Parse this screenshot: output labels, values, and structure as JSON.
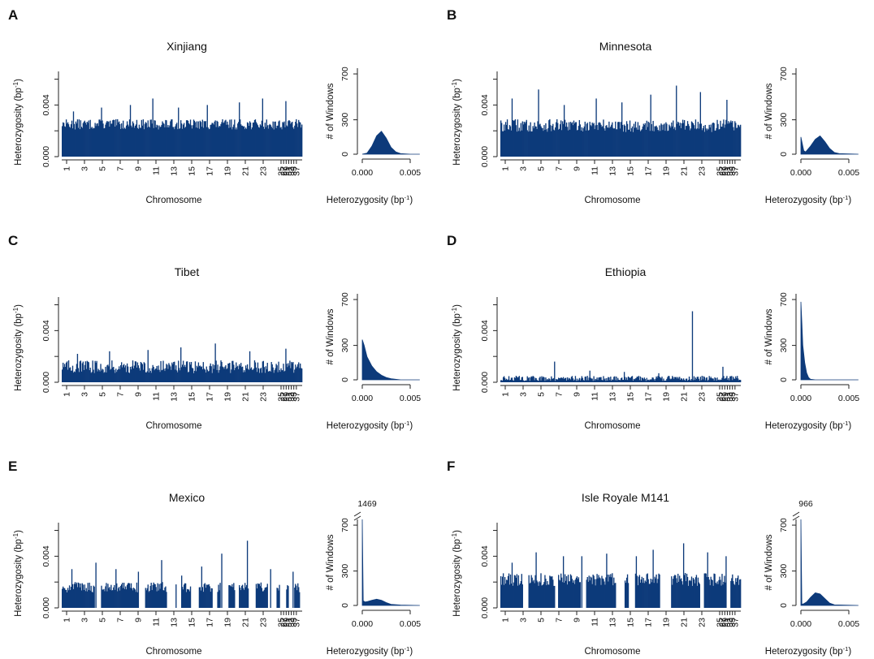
{
  "bar_color": "#0d3a7a",
  "axis_color": "#222222",
  "panel_letters": [
    "A",
    "B",
    "C",
    "D",
    "E",
    "F"
  ],
  "genome_axis": {
    "xlabel": "Chromosome",
    "ylabel": "Heterozygosity (bp",
    "ylabel_sup": "-1",
    "ylabel_close": ")",
    "y_ticks": [
      "0.000",
      "0.004"
    ],
    "ylim": [
      0,
      0.0066
    ],
    "x_tick_labels": [
      "1",
      "3",
      "5",
      "7",
      "9",
      "11",
      "13",
      "15",
      "17",
      "19",
      "21",
      "23",
      "25",
      "27",
      "29",
      "31",
      "33",
      "35",
      "37"
    ]
  },
  "hist_axis": {
    "xlabel": "Heterozygosity (bp",
    "xlabel_sup": "-1",
    "xlabel_close": ")",
    "ylabel": "# of Windows",
    "x_ticks": [
      "0.000",
      "0.005"
    ],
    "y_ticks": [
      "0",
      "300",
      "700"
    ],
    "xlim": [
      0,
      0.006
    ],
    "ylim": [
      0,
      750
    ]
  },
  "chart_data": [
    {
      "panel": "A",
      "title": "Xinjiang",
      "type": "bar",
      "genome": {
        "baseline": 0.0025,
        "spread": 0.0004,
        "gap_fraction": 0,
        "spikes": [
          0.0035,
          0.0038,
          0.004,
          0.0045,
          0.0038,
          0.004,
          0.0042,
          0.0045,
          0.0043
        ]
      },
      "histogram": {
        "x": [
          0.0,
          0.0005,
          0.001,
          0.0015,
          0.002,
          0.0025,
          0.003,
          0.0035,
          0.004,
          0.005,
          0.006
        ],
        "y": [
          0,
          10,
          70,
          160,
          200,
          140,
          60,
          20,
          5,
          0,
          0
        ],
        "break_label": ""
      }
    },
    {
      "panel": "B",
      "title": "Minnesota",
      "type": "bar",
      "genome": {
        "baseline": 0.0024,
        "spread": 0.0005,
        "gap_fraction": 0,
        "spikes": [
          0.0045,
          0.0052,
          0.004,
          0.0045,
          0.0042,
          0.0048,
          0.0055,
          0.005,
          0.0044
        ]
      },
      "histogram": {
        "x": [
          0.0,
          0.0003,
          0.0005,
          0.001,
          0.0015,
          0.002,
          0.0025,
          0.003,
          0.0035,
          0.004,
          0.006
        ],
        "y": [
          150,
          30,
          20,
          70,
          130,
          160,
          110,
          50,
          15,
          5,
          0
        ],
        "break_label": ""
      }
    },
    {
      "panel": "C",
      "title": "Tibet",
      "type": "bar",
      "genome": {
        "baseline": 0.0012,
        "spread": 0.0005,
        "gap_fraction": 0,
        "spikes": [
          0.0022,
          0.0024,
          0.0025,
          0.0027,
          0.003,
          0.0024,
          0.0026
        ]
      },
      "histogram": {
        "x": [
          0.0,
          0.0002,
          0.0005,
          0.001,
          0.0015,
          0.002,
          0.0025,
          0.003,
          0.004,
          0.006
        ],
        "y": [
          350,
          300,
          200,
          120,
          70,
          40,
          20,
          10,
          0,
          0
        ],
        "break_label": ""
      }
    },
    {
      "panel": "D",
      "title": "Ethiopia",
      "type": "bar",
      "genome": {
        "baseline": 0.0003,
        "spread": 0.0002,
        "gap_fraction": 0,
        "spikes": [
          0.0005,
          0.0016,
          0.0009,
          0.0008,
          0.0007,
          0.0055,
          0.0012
        ]
      },
      "histogram": {
        "x": [
          0.0,
          0.0001,
          0.0002,
          0.0004,
          0.0006,
          0.0008,
          0.001,
          0.0015,
          0.006
        ],
        "y": [
          680,
          500,
          300,
          150,
          60,
          20,
          5,
          0,
          0
        ],
        "break_label": ""
      }
    },
    {
      "panel": "E",
      "title": "Mexico",
      "type": "bar",
      "genome": {
        "baseline": 0.0016,
        "spread": 0.0004,
        "gap_fraction": 0.35,
        "spikes": [
          0.003,
          0.0035,
          0.003,
          0.0028,
          0.0037,
          0.0025,
          0.0032,
          0.0042,
          0.0052,
          0.003,
          0.0028
        ]
      },
      "histogram": {
        "x": [
          0.0,
          0.0001,
          0.0003,
          0.0006,
          0.001,
          0.0015,
          0.002,
          0.0025,
          0.003,
          0.004,
          0.006
        ],
        "y": [
          750,
          40,
          30,
          35,
          45,
          55,
          45,
          25,
          10,
          3,
          0
        ],
        "break_label": "1469"
      }
    },
    {
      "panel": "F",
      "title": "Isle Royale M141",
      "type": "bar",
      "genome": {
        "baseline": 0.0022,
        "spread": 0.0005,
        "gap_fraction": 0.2,
        "spikes": [
          0.0035,
          0.0043,
          0.004,
          0.004,
          0.0042,
          0.004,
          0.0045,
          0.005,
          0.0043,
          0.004
        ]
      },
      "histogram": {
        "x": [
          0.0,
          0.0001,
          0.0003,
          0.0006,
          0.001,
          0.0015,
          0.002,
          0.0025,
          0.003,
          0.0035,
          0.006
        ],
        "y": [
          750,
          10,
          15,
          30,
          70,
          110,
          100,
          60,
          20,
          5,
          0
        ],
        "break_label": "966"
      }
    }
  ]
}
